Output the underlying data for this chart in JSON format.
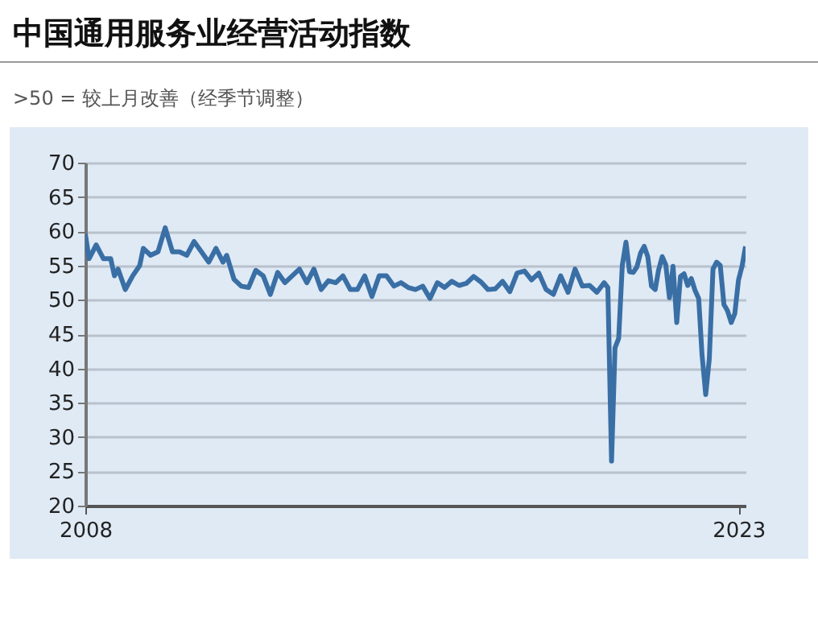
{
  "chart_data": {
    "type": "line",
    "title": "中国通用服务业经营活动指数",
    "subtitle": ">50 = 较上月改善（经季节调整）",
    "x": [
      "2008-01",
      "2008-02",
      "2008-04",
      "2008-06",
      "2008-08",
      "2008-09",
      "2008-10",
      "2008-12",
      "2009-02",
      "2009-04",
      "2009-05",
      "2009-07",
      "2009-09",
      "2009-11",
      "2010-01",
      "2010-03",
      "2010-05",
      "2010-07",
      "2010-09",
      "2010-11",
      "2011-01",
      "2011-03",
      "2011-04",
      "2011-06",
      "2011-08",
      "2011-10",
      "2011-12",
      "2012-02",
      "2012-04",
      "2012-06",
      "2012-08",
      "2012-10",
      "2012-12",
      "2013-02",
      "2013-04",
      "2013-06",
      "2013-08",
      "2013-10",
      "2013-12",
      "2014-02",
      "2014-04",
      "2014-06",
      "2014-08",
      "2014-10",
      "2014-12",
      "2015-02",
      "2015-04",
      "2015-06",
      "2015-08",
      "2015-10",
      "2015-12",
      "2016-02",
      "2016-04",
      "2016-06",
      "2016-08",
      "2016-10",
      "2016-12",
      "2017-02",
      "2017-04",
      "2017-06",
      "2017-08",
      "2017-10",
      "2017-12",
      "2018-02",
      "2018-04",
      "2018-06",
      "2018-08",
      "2018-10",
      "2018-12",
      "2019-02",
      "2019-04",
      "2019-06",
      "2019-08",
      "2019-10",
      "2019-12",
      "2020-01",
      "2020-02",
      "2020-03",
      "2020-04",
      "2020-05",
      "2020-06",
      "2020-07",
      "2020-08",
      "2020-09",
      "2020-10",
      "2020-11",
      "2020-12",
      "2021-01",
      "2021-02",
      "2021-03",
      "2021-04",
      "2021-05",
      "2021-06",
      "2021-07",
      "2021-08",
      "2021-09",
      "2021-10",
      "2021-11",
      "2021-12",
      "2022-01",
      "2022-02",
      "2022-03",
      "2022-04",
      "2022-05",
      "2022-06",
      "2022-07",
      "2022-08",
      "2022-09",
      "2022-10",
      "2022-11",
      "2022-12",
      "2023-01",
      "2023-02",
      "2023-03"
    ],
    "series": [
      {
        "color": "#3a6fa5",
        "values": [
          59.6,
          56,
          58,
          56,
          56,
          53.5,
          54.5,
          51.5,
          53.5,
          55,
          57.5,
          56.5,
          57,
          60.5,
          57,
          57,
          56.5,
          58.5,
          57,
          55.5,
          57.5,
          55.5,
          56.5,
          53,
          52,
          51.8,
          54.3,
          53.5,
          50.8,
          54,
          52.5,
          53.5,
          54.5,
          52.5,
          54.5,
          51.5,
          52.8,
          52.5,
          53.5,
          51.5,
          51.5,
          53.5,
          50.5,
          53.5,
          53.5,
          52,
          52.5,
          51.8,
          51.5,
          52,
          50.2,
          52.5,
          51.8,
          52.7,
          52.1,
          52.4,
          53.4,
          52.6,
          51.5,
          51.6,
          52.7,
          51.2,
          53.9,
          54.2,
          52.9,
          53.9,
          51.5,
          50.8,
          53.5,
          51.1,
          54.5,
          52,
          52.1,
          51.1,
          52.5,
          51.8,
          26.5,
          43,
          44.4,
          55,
          58.4,
          54.1,
          54,
          54.8,
          56.8,
          57.8,
          56.3,
          52,
          51.5,
          54.3,
          56.3,
          55.1,
          50.3,
          54.9,
          46.7,
          53.4,
          53.8,
          52.1,
          53.1,
          51.4,
          50.2,
          42,
          36.2,
          41.4,
          54.5,
          55.5,
          55,
          49.3,
          48.4,
          46.7,
          48,
          52.9,
          55,
          57.8
        ]
      }
    ],
    "xlim": [
      "2008-01",
      "2023-03"
    ],
    "xticks": [
      {
        "value": "2008-01",
        "label": "2008"
      },
      {
        "value": "2023-01",
        "label": "2023"
      }
    ],
    "ylim": [
      20,
      70
    ],
    "yticks": [
      20,
      25,
      30,
      35,
      40,
      45,
      50,
      55,
      60,
      65,
      70
    ],
    "grid": "y"
  }
}
